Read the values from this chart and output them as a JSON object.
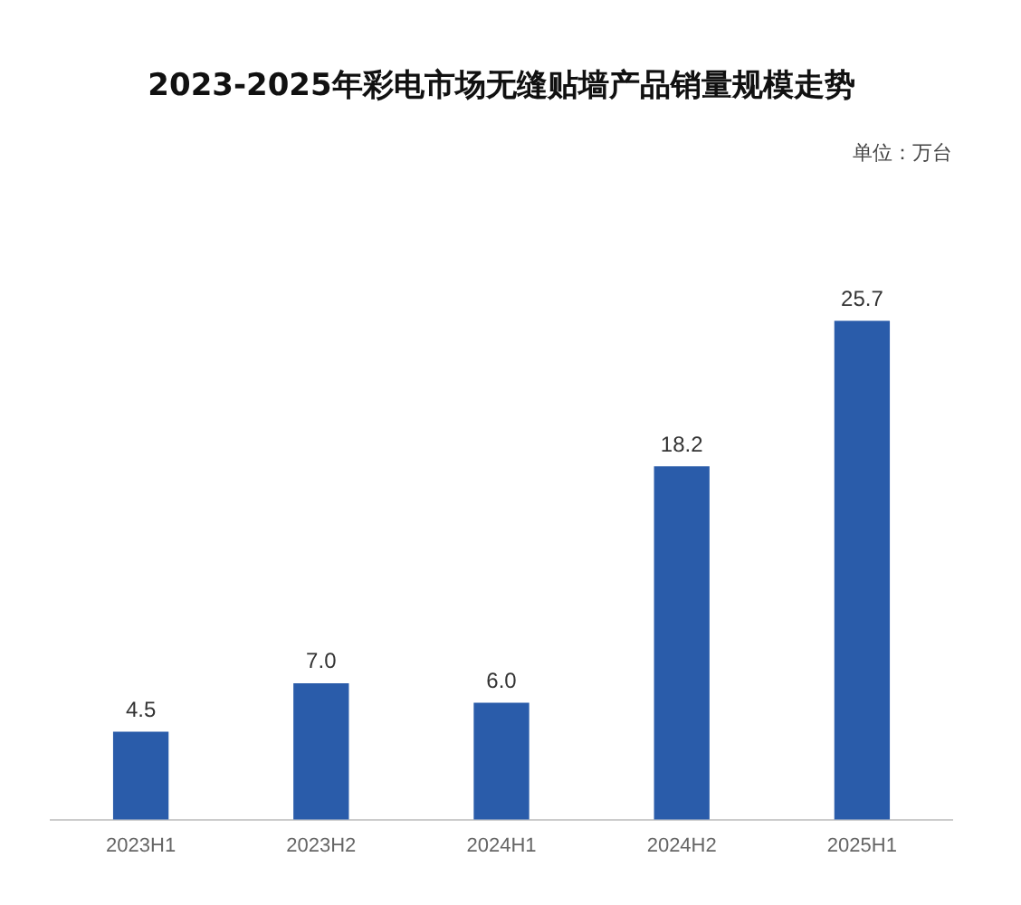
{
  "chart_data": {
    "type": "bar",
    "title": "2023-2025年彩电市场无缝贴墙产品销量规模走势",
    "annotations": [
      "单位：万台"
    ],
    "categories": [
      "2023H1",
      "2023H2",
      "2024H1",
      "2024H2",
      "2025H1"
    ],
    "values": [
      4.5,
      7.0,
      6.0,
      18.2,
      25.7
    ],
    "value_labels": [
      "4.5",
      "7.0",
      "6.0",
      "18.2",
      "25.7"
    ],
    "color": "#2a5caa",
    "grid": false,
    "legend": false
  }
}
